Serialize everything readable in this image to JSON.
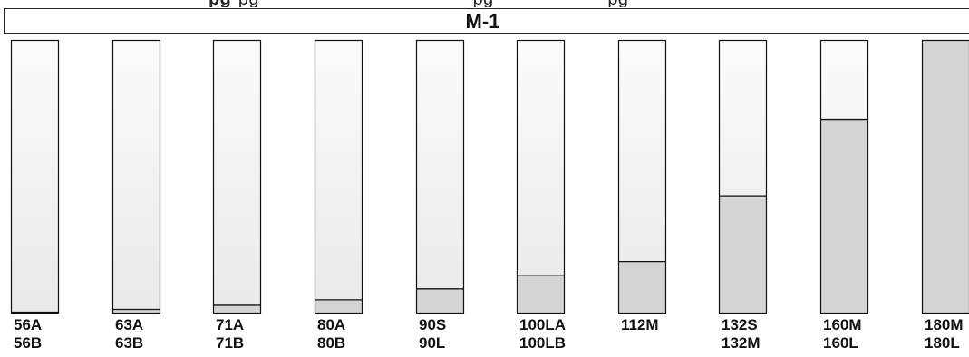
{
  "top_strip": {
    "items": [
      "pg",
      "pg",
      "pg",
      "pg"
    ]
  },
  "chart_data": {
    "type": "bar",
    "title": "M-1",
    "categories": [
      [
        "56A",
        "56B"
      ],
      [
        "63A",
        "63B"
      ],
      [
        "71A",
        "71B"
      ],
      [
        "80A",
        "80B"
      ],
      [
        "90S",
        "90L"
      ],
      [
        "100LA",
        "100LB"
      ],
      [
        "112M"
      ],
      [
        "132S",
        "132M"
      ],
      [
        "160M",
        "160L"
      ],
      [
        "180M",
        "180L"
      ]
    ],
    "values": [
      0.5,
      1.5,
      3,
      5,
      9,
      14,
      19,
      43,
      71,
      100
    ],
    "ylim": [
      0,
      100
    ],
    "xlabel": "",
    "ylabel": "",
    "grid": false,
    "colors": {
      "fill": "#d4d4d4",
      "empty_top": "#fbfbfb",
      "empty_bottom": "#e9e9e9",
      "outline": "#111111"
    }
  }
}
